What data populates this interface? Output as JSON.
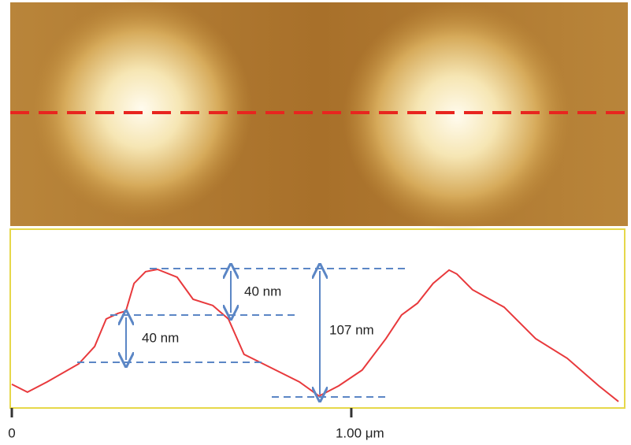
{
  "chart_data": {
    "type": "line",
    "x": [
      0,
      0.046,
      0.104,
      0.197,
      0.244,
      0.278,
      0.313,
      0.336,
      0.36,
      0.394,
      0.429,
      0.487,
      0.534,
      0.592,
      0.638,
      0.684,
      0.754,
      0.847,
      0.905,
      0.963,
      1.032,
      1.102,
      1.148,
      1.195,
      1.241,
      1.288,
      1.311,
      1.357,
      1.45,
      1.543,
      1.636,
      1.729,
      1.787
    ],
    "series": [
      {
        "color": "#e8393c",
        "values": [
          9.9,
          3.3,
          11.9,
          27,
          41.6,
          64.7,
          69.4,
          71.3,
          94.5,
          104.4,
          106.3,
          99.7,
          81.2,
          76,
          64.7,
          35,
          25.1,
          11.9,
          0,
          8.6,
          21.8,
          48.2,
          68,
          77.9,
          94.5,
          105.7,
          102.4,
          89.2,
          74.6,
          48.2,
          31.7,
          8.6,
          -4.6
        ]
      }
    ],
    "xlim": [
      0,
      1.81
    ],
    "ylim": [
      -10,
      140
    ],
    "xticks": [
      0,
      {
        "value": 1.0,
        "label": "1.00 μm"
      }
    ],
    "annotations": [
      "40 nm",
      "40 nm",
      "107 nm"
    ]
  }
}
